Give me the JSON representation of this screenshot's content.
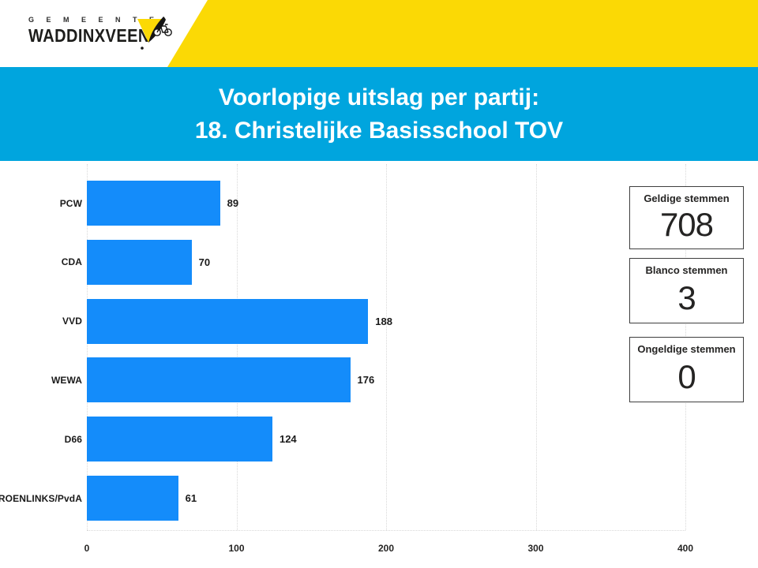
{
  "logo": {
    "gemeente_label": "G E M E E N T E",
    "municipality_name": "WADDINXVEEN"
  },
  "header": {
    "title_line1": "Voorlopige uitslag per partij:",
    "title_line2": "18. Christelijke Basisschool TOV"
  },
  "chart_data": {
    "type": "bar",
    "orientation": "horizontal",
    "categories": [
      "PCW",
      "CDA",
      "VVD",
      "WEWA",
      "D66",
      "GROENLINKS/PvdA"
    ],
    "values": [
      89,
      70,
      188,
      176,
      124,
      61
    ],
    "value_labels_shown": true,
    "xlim": [
      0,
      400
    ],
    "x_ticks": [
      0,
      100,
      200,
      300,
      400
    ],
    "grid": "vertical dotted gridlines",
    "legend": "none",
    "bar_color": "#148CFA"
  },
  "cards": [
    {
      "label": "Geldige stemmen",
      "value": "708"
    },
    {
      "label": "Blanco stemmen",
      "value": "3"
    },
    {
      "label": "Ongeldige stemmen",
      "value": "0"
    }
  ],
  "colors": {
    "brand_yellow": "#FBD905",
    "band_blue": "#00A5DE",
    "bar_blue": "#148CFA",
    "card_border": "#3f3f3f"
  }
}
